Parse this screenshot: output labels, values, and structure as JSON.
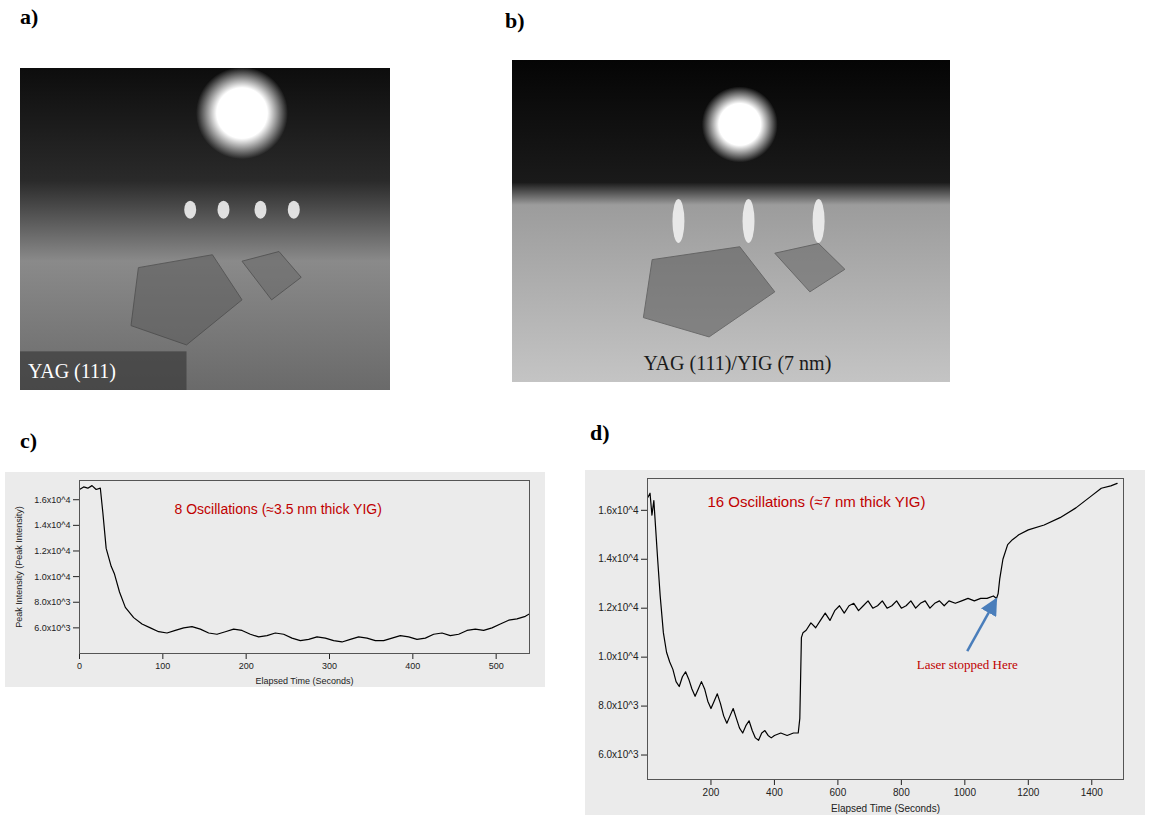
{
  "images": [
    {
      "panel": "a)",
      "label": "YAG (111)"
    },
    {
      "panel": "b)",
      "label": "YAG (111)/YIG (7 nm)"
    }
  ],
  "chart_data": [
    {
      "panel": "c)",
      "type": "line",
      "title": "8 Oscillations (≈3.5 nm thick YIG)",
      "x_label": "Elapsed Time (Seconds)",
      "y_label": "Peak Intensity (Peak Intensity)",
      "color": "#000000",
      "x": [
        0,
        5,
        10,
        15,
        20,
        25,
        28,
        32,
        38,
        42,
        48,
        55,
        65,
        75,
        85,
        95,
        105,
        115,
        125,
        135,
        145,
        155,
        165,
        175,
        185,
        195,
        205,
        215,
        225,
        235,
        245,
        255,
        265,
        275,
        285,
        295,
        305,
        315,
        325,
        335,
        345,
        355,
        365,
        375,
        385,
        395,
        405,
        415,
        425,
        435,
        445,
        455,
        465,
        475,
        485,
        495,
        505,
        515,
        525,
        535,
        540
      ],
      "values": [
        16800,
        17000,
        16900,
        17100,
        16800,
        16900,
        15000,
        12200,
        10800,
        10200,
        8800,
        7600,
        6800,
        6300,
        6000,
        5700,
        5600,
        5800,
        6000,
        6100,
        5900,
        5600,
        5500,
        5700,
        5900,
        5800,
        5500,
        5300,
        5400,
        5600,
        5500,
        5200,
        5000,
        5100,
        5300,
        5200,
        5000,
        4900,
        5100,
        5300,
        5200,
        5000,
        5000,
        5200,
        5400,
        5300,
        5100,
        5200,
        5500,
        5600,
        5400,
        5500,
        5800,
        5900,
        5800,
        6000,
        6300,
        6600,
        6700,
        6900,
        7100
      ],
      "xlim": [
        0,
        540
      ],
      "xticks": [
        0,
        100,
        200,
        300,
        400,
        500
      ],
      "ylim": [
        4000,
        17500
      ],
      "yticks": [
        {
          "value": 6000,
          "label": "6.0x10^3"
        },
        {
          "value": 8000,
          "label": "8.0x10^3"
        },
        {
          "value": 10000,
          "label": "1.0x10^4"
        },
        {
          "value": 12000,
          "label": "1.2x10^4"
        },
        {
          "value": 14000,
          "label": "1.4x10^4"
        },
        {
          "value": 16000,
          "label": "1.6x10^4"
        }
      ]
    },
    {
      "panel": "d)",
      "type": "line",
      "title": "16 Oscillations (≈7 nm thick YIG)",
      "x_label": "Elapsed Time (Seconds)",
      "color": "#000000",
      "x": [
        0,
        8,
        14,
        20,
        26,
        32,
        40,
        50,
        60,
        70,
        80,
        90,
        100,
        110,
        120,
        130,
        140,
        150,
        160,
        170,
        180,
        190,
        200,
        210,
        220,
        230,
        240,
        250,
        260,
        270,
        280,
        290,
        300,
        310,
        320,
        330,
        340,
        350,
        360,
        370,
        380,
        390,
        400,
        420,
        440,
        460,
        475,
        480,
        485,
        490,
        500,
        515,
        530,
        545,
        560,
        575,
        590,
        605,
        620,
        635,
        650,
        665,
        680,
        695,
        710,
        725,
        740,
        755,
        770,
        785,
        800,
        815,
        830,
        845,
        860,
        875,
        890,
        905,
        920,
        935,
        950,
        970,
        990,
        1010,
        1030,
        1050,
        1070,
        1090,
        1100,
        1105,
        1110,
        1120,
        1135,
        1150,
        1170,
        1200,
        1250,
        1300,
        1350,
        1400,
        1430,
        1460,
        1480
      ],
      "values": [
        16500,
        16700,
        15800,
        16400,
        15200,
        14000,
        12500,
        11000,
        10200,
        9800,
        9500,
        9000,
        8800,
        9200,
        9400,
        9100,
        8700,
        8400,
        8700,
        9000,
        8700,
        8200,
        7900,
        8200,
        8500,
        8100,
        7600,
        7300,
        7600,
        7900,
        7500,
        7100,
        6900,
        7200,
        7400,
        7000,
        6700,
        6600,
        6900,
        7000,
        6800,
        6700,
        6800,
        6900,
        6800,
        6900,
        6900,
        7500,
        10800,
        11000,
        11100,
        11400,
        11200,
        11500,
        11800,
        11500,
        11900,
        12100,
        11800,
        12100,
        12200,
        11900,
        12100,
        12300,
        12000,
        12100,
        12300,
        12000,
        12100,
        12300,
        12000,
        12100,
        12300,
        12000,
        12200,
        12300,
        12000,
        12200,
        12300,
        12100,
        12300,
        12200,
        12300,
        12400,
        12300,
        12400,
        12400,
        12500,
        12400,
        12600,
        13200,
        14000,
        14600,
        14800,
        15000,
        15200,
        15400,
        15700,
        16100,
        16600,
        16900,
        17000,
        17100
      ],
      "xlim": [
        0,
        1500
      ],
      "xticks": [
        200,
        400,
        600,
        800,
        1000,
        1200,
        1400
      ],
      "ylim": [
        5000,
        17300
      ],
      "yticks": [
        {
          "value": 6000,
          "label": "6.0x10^3"
        },
        {
          "value": 8000,
          "label": "8.0x10^3"
        },
        {
          "value": 10000,
          "label": "1.0x10^4"
        },
        {
          "value": 12000,
          "label": "1.2x10^4"
        },
        {
          "value": 14000,
          "label": "1.4x10^4"
        },
        {
          "value": 16000,
          "label": "1.6x10^4"
        }
      ],
      "annotations": [
        {
          "text": "Laser stopped Here",
          "x": 1110,
          "y": 12600
        }
      ]
    }
  ]
}
